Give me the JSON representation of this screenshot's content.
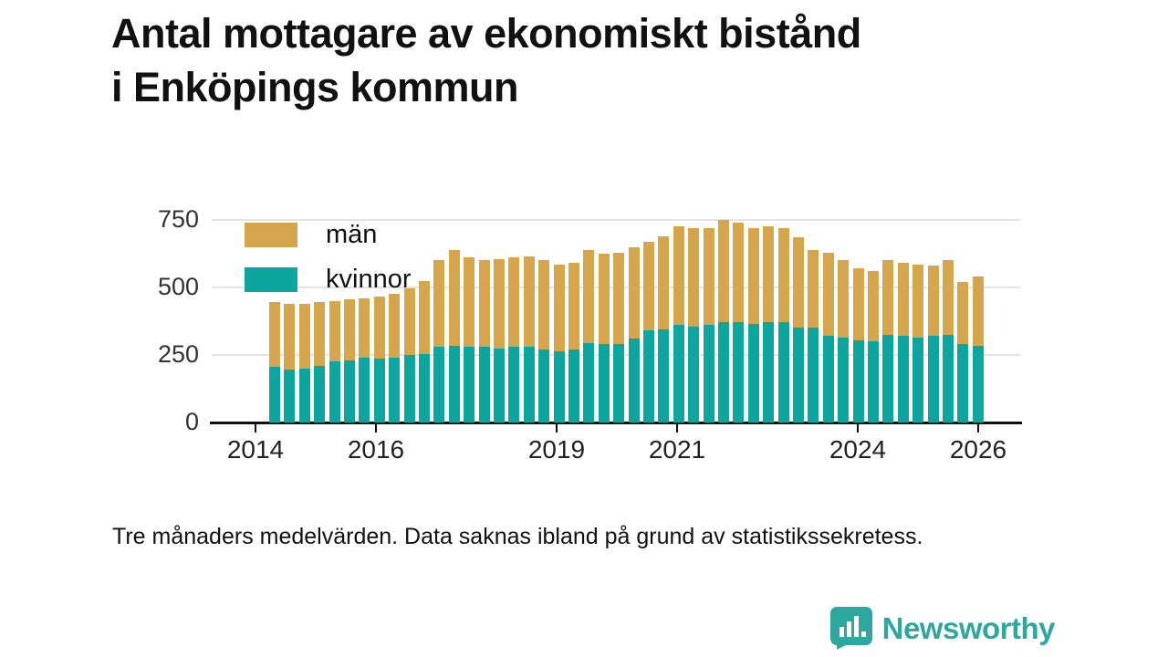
{
  "title": {
    "line1": "Antal mottagare av ekonomiskt bistånd",
    "line2": "i Enköpings kommun"
  },
  "footnote": "Tre månaders medelvärden. Data saknas ibland på grund av statistikssekretess.",
  "branding": {
    "name": "Newsworthy",
    "icon": "speech-bubble-bar-chart-icon",
    "color": "#2da89f"
  },
  "colors": {
    "man": "#d6a64c",
    "kvinnor": "#0ca69e",
    "axis": "#111111",
    "grid": "#e4e4e4",
    "tick_text": "#333333"
  },
  "legend": [
    {
      "label": "män",
      "color": "#d6a64c"
    },
    {
      "label": "kvinnor",
      "color": "#0ca69e"
    }
  ],
  "chart_data": {
    "type": "bar",
    "stacked": true,
    "title": "Antal mottagare av ekonomiskt bistånd i Enköpings kommun",
    "xlabel": "",
    "ylabel": "",
    "x_start": 2014.25,
    "x_step": 0.25,
    "n_bars": 48,
    "y_ticks": [
      0,
      250,
      500,
      750
    ],
    "x_ticks": [
      2014,
      2016,
      2019,
      2021,
      2024,
      2026
    ],
    "ylim": [
      0,
      780
    ],
    "grid": "horizontal",
    "legend_position": "top-left-inside",
    "series": [
      {
        "name": "kvinnor",
        "color": "#0ca69e",
        "values": [
          205,
          195,
          200,
          210,
          225,
          230,
          240,
          235,
          240,
          250,
          255,
          280,
          285,
          280,
          280,
          275,
          280,
          280,
          270,
          265,
          270,
          295,
          290,
          290,
          310,
          340,
          345,
          360,
          355,
          360,
          370,
          370,
          365,
          370,
          370,
          350,
          350,
          320,
          315,
          305,
          300,
          325,
          320,
          315,
          320,
          325,
          290,
          285
        ]
      },
      {
        "name": "män",
        "color": "#d6a64c",
        "values": [
          240,
          245,
          240,
          235,
          225,
          225,
          220,
          230,
          235,
          245,
          270,
          320,
          355,
          330,
          320,
          330,
          330,
          335,
          330,
          320,
          320,
          345,
          335,
          340,
          340,
          330,
          345,
          365,
          365,
          360,
          380,
          370,
          355,
          355,
          350,
          335,
          290,
          310,
          285,
          265,
          260,
          275,
          270,
          270,
          260,
          275,
          230,
          255
        ]
      }
    ],
    "note": "Tre månaders medelvärden. Data saknas ibland på grund av statistikssekretess."
  }
}
